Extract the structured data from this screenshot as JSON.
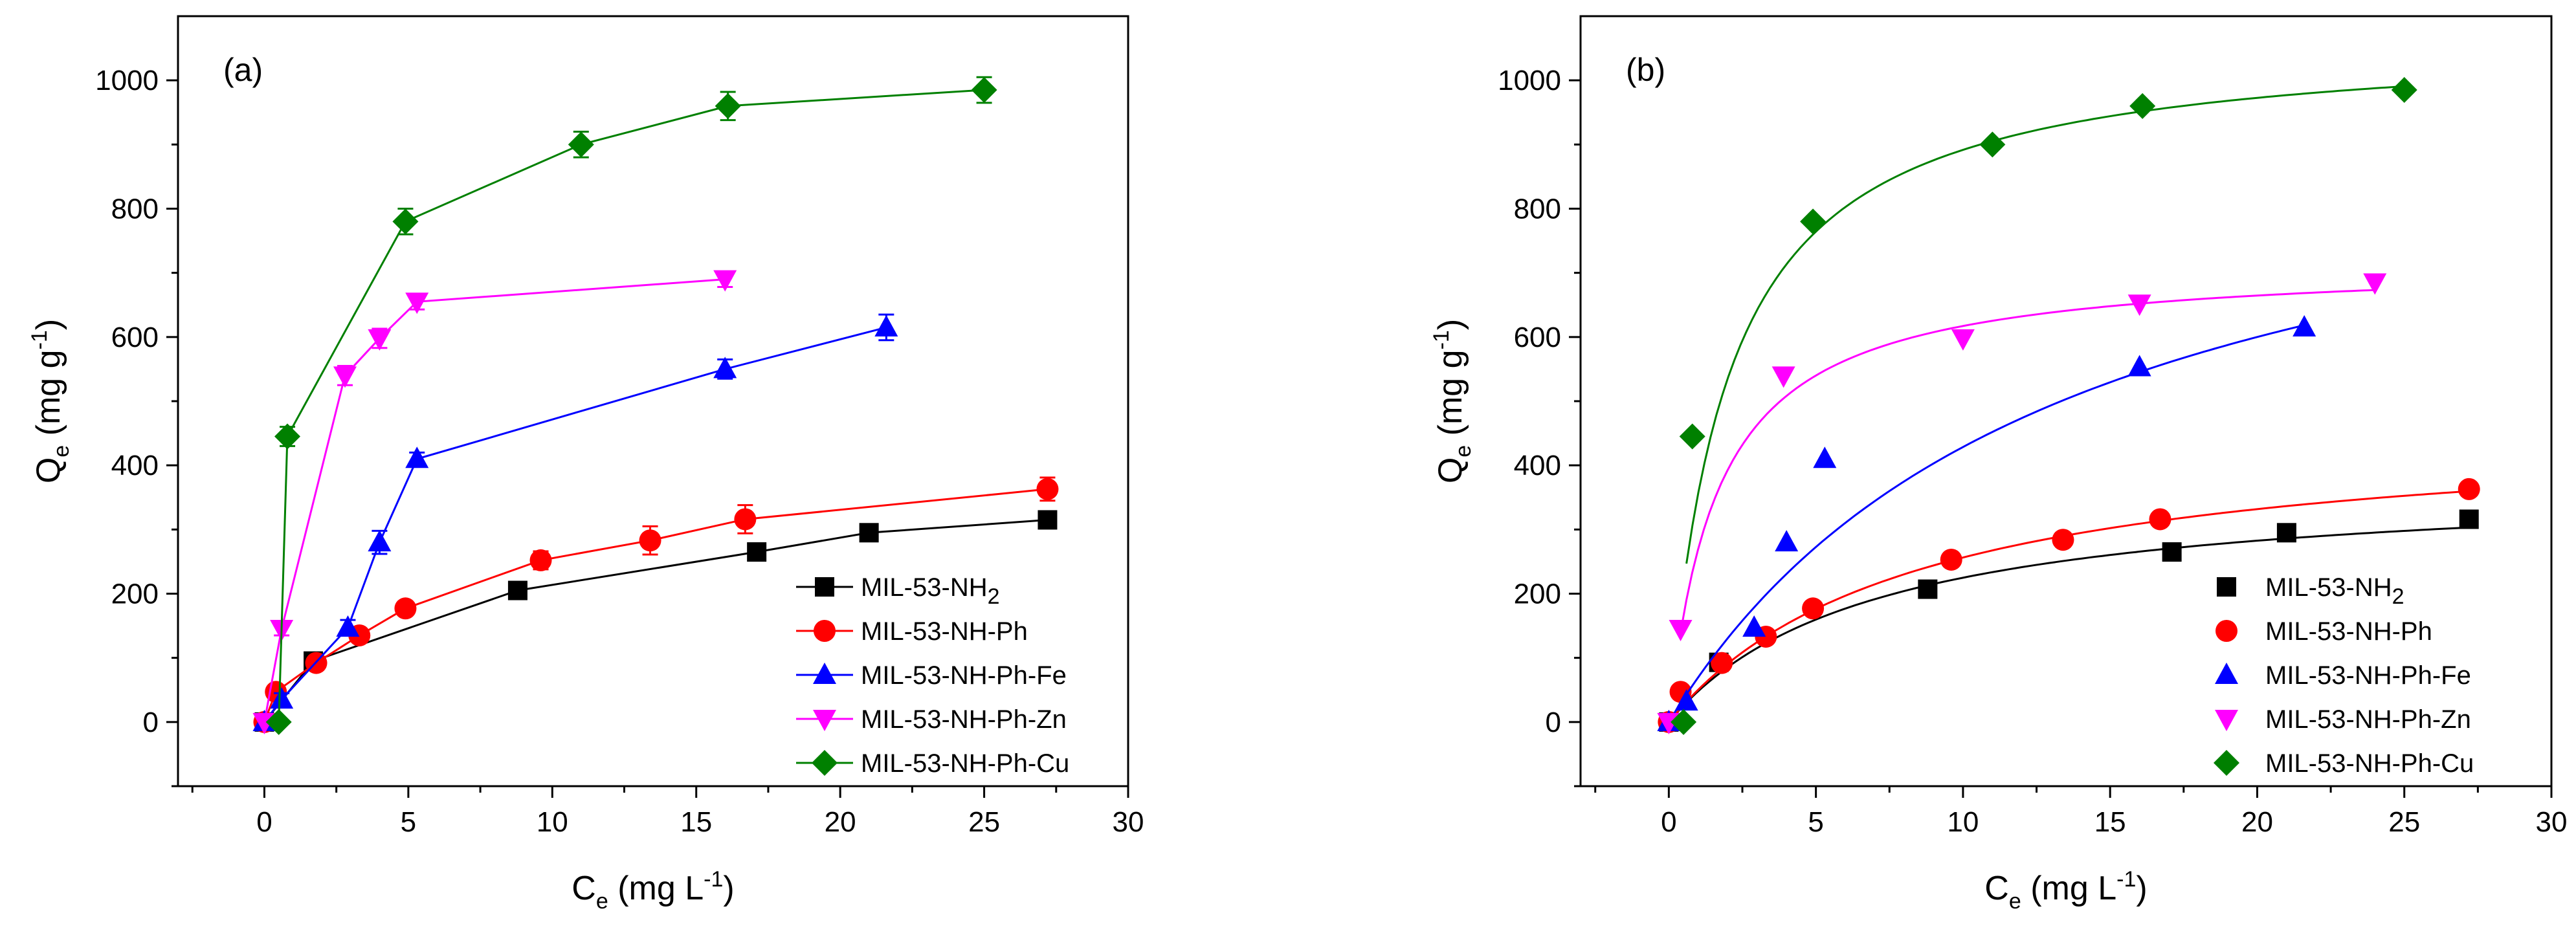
{
  "chart_data": [
    {
      "type": "line",
      "panel_label": "(a)",
      "xlabel": {
        "main": "C",
        "sub": "e",
        "rest": " (mg L",
        "sup": "-1",
        "end": ")"
      },
      "ylabel": {
        "main": "Q",
        "sub": "e",
        "rest": " (mg g",
        "sup": "-1",
        "end": ")"
      },
      "xlim": [
        -3,
        30
      ],
      "ylim": [
        -100,
        1100
      ],
      "xticks": [
        0,
        5,
        10,
        15,
        20,
        25,
        30
      ],
      "yticks": [
        0,
        200,
        400,
        600,
        800,
        1000
      ],
      "error_bars": true,
      "legend_position": "lower-right",
      "series": [
        {
          "name": "MIL-53-NH",
          "name_sub": "2",
          "color": "#000000",
          "marker": "square",
          "x": [
            0,
            1.7,
            8.8,
            17.1,
            21,
            27.2
          ],
          "y": [
            0,
            95,
            205,
            265,
            295,
            315
          ],
          "err": [
            0,
            8,
            8,
            12,
            10,
            8
          ]
        },
        {
          "name": "MIL-53-NH-Ph",
          "color": "#ff0000",
          "marker": "circle",
          "x": [
            0,
            0.4,
            1.8,
            3.3,
            4.9,
            9.6,
            13.4,
            16.7,
            27.2
          ],
          "y": [
            0,
            47,
            92,
            135,
            177,
            252,
            283,
            316,
            363
          ],
          "err": [
            0,
            5,
            8,
            8,
            10,
            14,
            22,
            22,
            18
          ]
        },
        {
          "name": "MIL-53-NH-Ph-Fe",
          "color": "#0000ff",
          "marker": "triangle-up",
          "x": [
            0,
            0.6,
            2.9,
            4,
            5.3,
            16,
            21.6
          ],
          "y": [
            0,
            35,
            147,
            280,
            410,
            550,
            615
          ],
          "err": [
            0,
            10,
            12,
            18,
            10,
            15,
            20
          ]
        },
        {
          "name": "MIL-53-NH-Ph-Zn",
          "color": "#ff00ff",
          "marker": "triangle-down",
          "x": [
            0,
            0.6,
            2.8,
            4,
            5.3,
            16
          ],
          "y": [
            0,
            145,
            540,
            598,
            655,
            690
          ],
          "err": [
            0,
            10,
            15,
            15,
            12,
            12
          ]
        },
        {
          "name": "MIL-53-NH-Ph-Cu",
          "color": "#008000",
          "marker": "diamond",
          "x": [
            0.5,
            0.8,
            4.9,
            11,
            16.1,
            25
          ],
          "y": [
            0,
            445,
            780,
            900,
            960,
            985
          ],
          "err": [
            0,
            15,
            20,
            20,
            22,
            20
          ]
        }
      ]
    },
    {
      "type": "scatter",
      "panel_label": "(b)",
      "xlabel": {
        "main": "C",
        "sub": "e",
        "rest": " (mg L",
        "sup": "-1",
        "end": ")"
      },
      "ylabel": {
        "main": "Q",
        "sub": "e",
        "rest": " (mg g",
        "sup": "-1",
        "end": ")"
      },
      "xlim": [
        -3,
        30
      ],
      "ylim": [
        -100,
        1100
      ],
      "xticks": [
        0,
        5,
        10,
        15,
        20,
        25,
        30
      ],
      "yticks": [
        0,
        200,
        400,
        600,
        800,
        1000
      ],
      "fit_curves": "langmuir",
      "legend_position": "lower-right",
      "series": [
        {
          "name": "MIL-53-NH",
          "name_sub": "2",
          "color": "#000000",
          "marker": "square",
          "x": [
            0,
            1.7,
            8.8,
            17.1,
            21,
            27.2
          ],
          "y": [
            0,
            93,
            207,
            265,
            295,
            316
          ],
          "fit": {
            "qmax": 380,
            "KL": 0.145,
            "xrange": [
              0,
              27.2
            ]
          }
        },
        {
          "name": "MIL-53-NH-Ph",
          "color": "#ff0000",
          "marker": "circle",
          "x": [
            0,
            0.4,
            1.8,
            3.3,
            4.9,
            9.6,
            13.4,
            16.7,
            27.2
          ],
          "y": [
            0,
            47,
            92,
            133,
            177,
            253,
            284,
            316,
            363
          ],
          "fit": {
            "qmax": 470,
            "KL": 0.12,
            "xrange": [
              0,
              27.2
            ]
          }
        },
        {
          "name": "MIL-53-NH-Ph-Fe",
          "color": "#0000ff",
          "marker": "triangle-up",
          "x": [
            0,
            0.6,
            2.9,
            4,
            5.3,
            16,
            21.6
          ],
          "y": [
            0,
            32,
            147,
            280,
            410,
            553,
            615
          ],
          "fit": {
            "qmax": 1000,
            "KL": 0.075,
            "xrange": [
              0,
              21.6
            ]
          }
        },
        {
          "name": "MIL-53-NH-Ph-Zn",
          "color": "#ff00ff",
          "marker": "triangle-down",
          "x": [
            0,
            0.4,
            3.9,
            10,
            16,
            24
          ],
          "y": [
            0,
            145,
            540,
            598,
            652,
            685
          ],
          "fit": {
            "qmax": 720,
            "KL": 0.6,
            "xrange": [
              0.4,
              24
            ]
          }
        },
        {
          "name": "MIL-53-NH-Ph-Cu",
          "color": "#008000",
          "marker": "diamond",
          "x": [
            0.5,
            0.8,
            4.9,
            11,
            16.1,
            25
          ],
          "y": [
            0,
            445,
            780,
            900,
            960,
            985
          ],
          "fit": {
            "qmax": 1070,
            "KL": 0.5,
            "xrange": [
              0.6,
              25
            ]
          }
        }
      ]
    }
  ]
}
